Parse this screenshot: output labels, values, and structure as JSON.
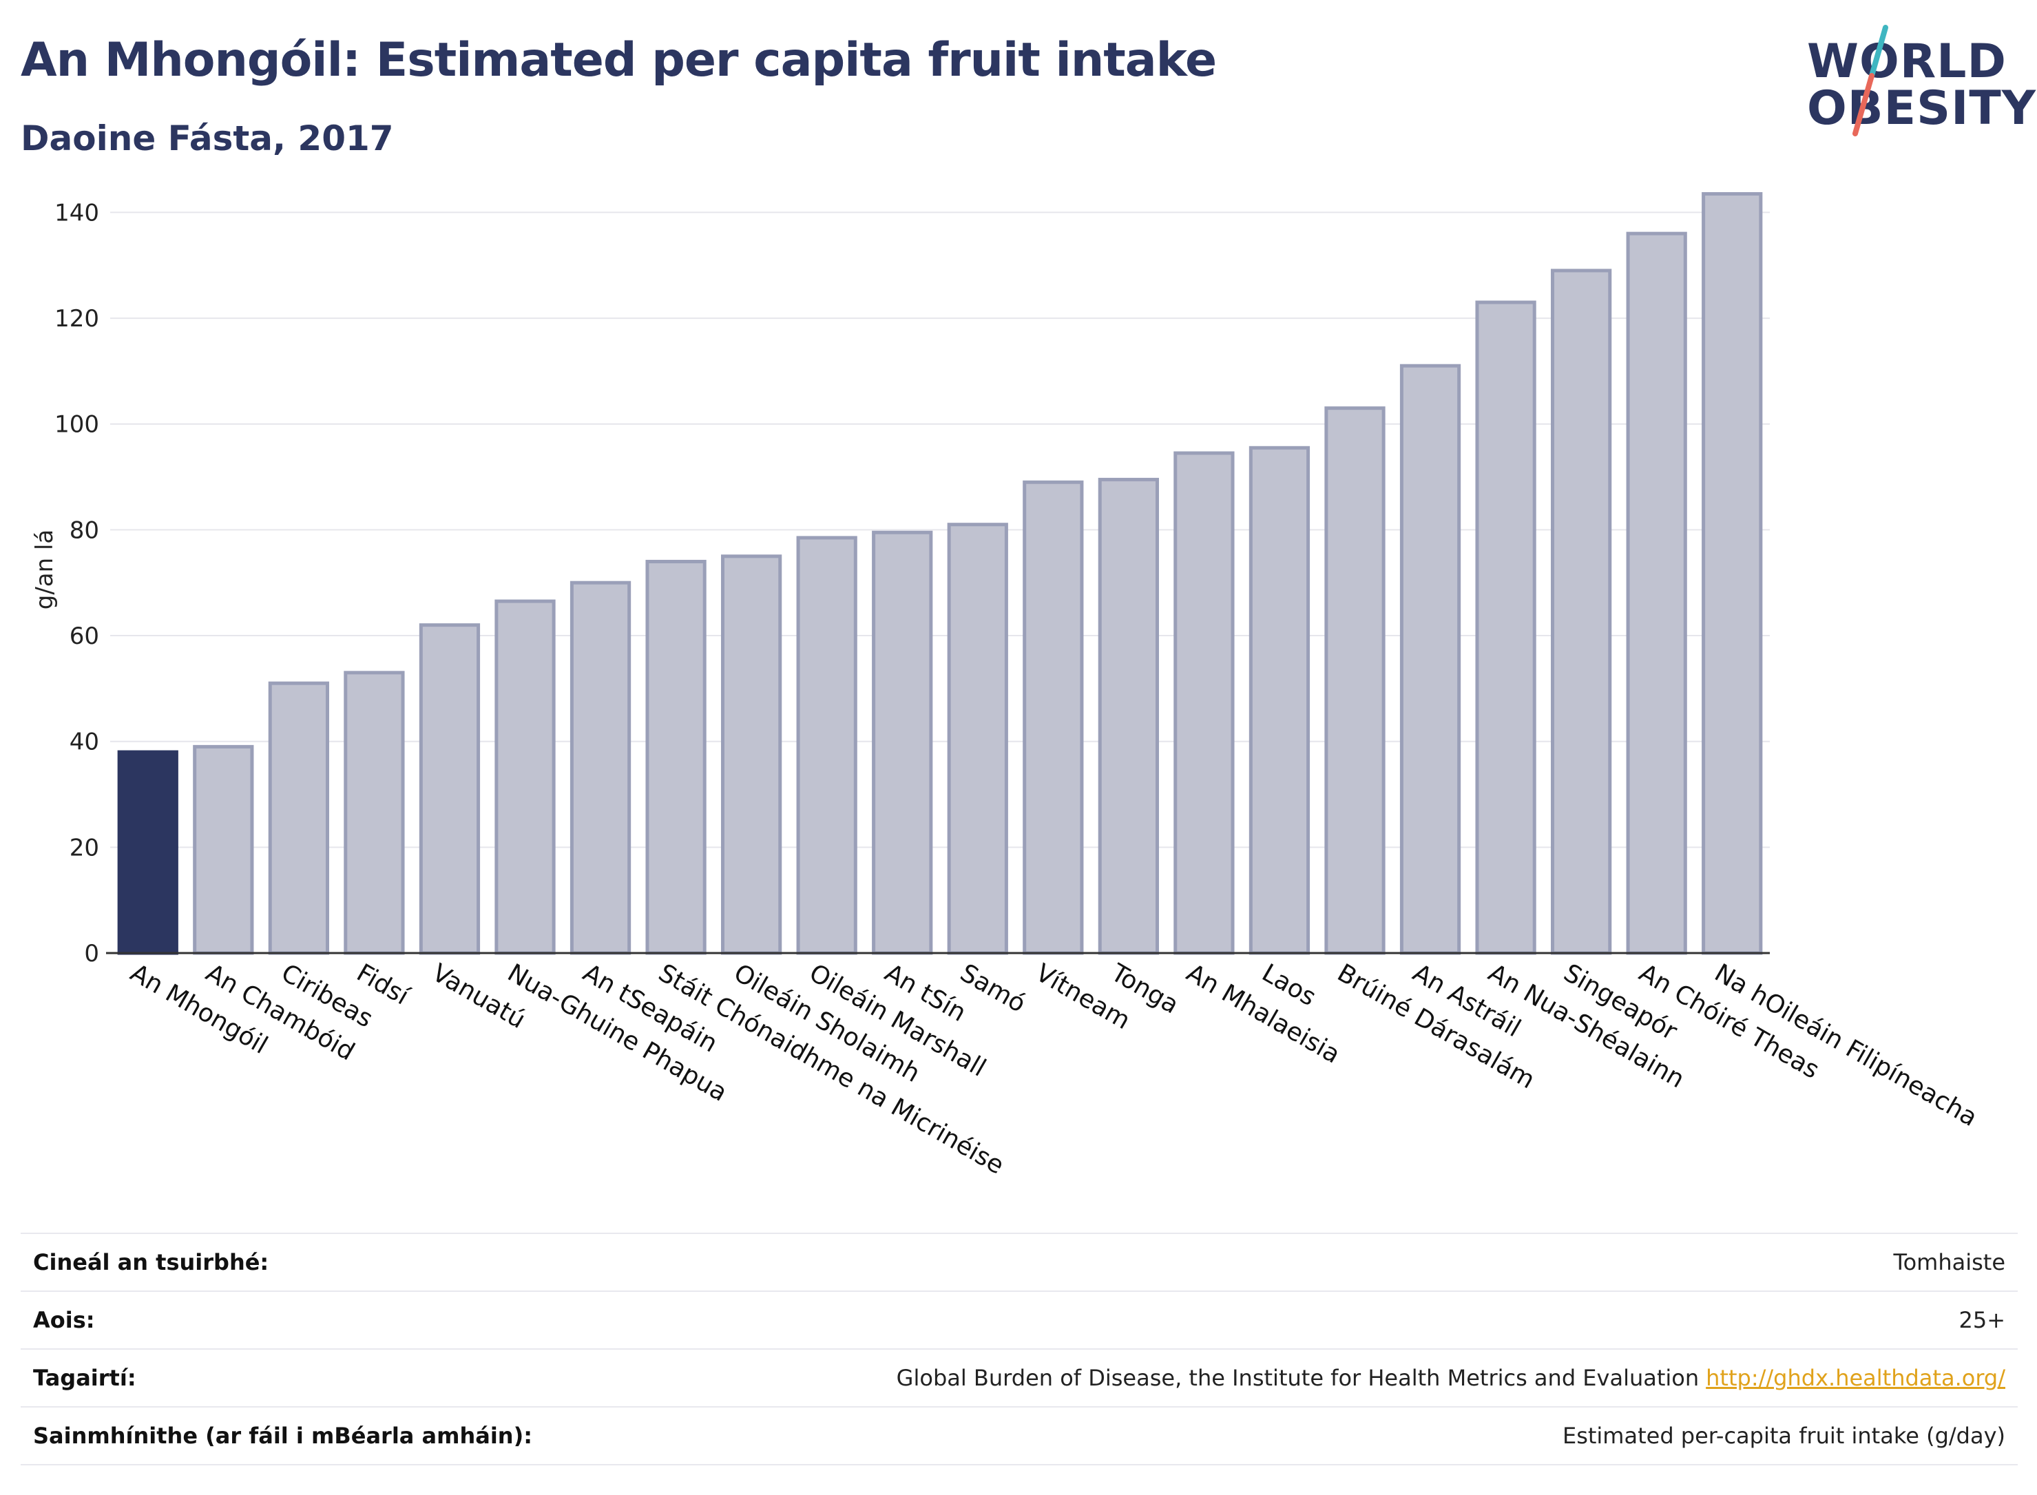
{
  "header": {
    "title": "An Mhongóil: Estimated per capita fruit intake",
    "subtitle": "Daoine Fásta, 2017"
  },
  "logo": {
    "line1": "WORLD",
    "line2": "OBESITY",
    "colors": {
      "text": "#2c3660",
      "slash_top": "#3fb6c1",
      "slash_bottom": "#e8685a"
    }
  },
  "chart_data": {
    "type": "bar",
    "ylabel": "g/an lá",
    "ylim": [
      0,
      145
    ],
    "yticks": [
      0,
      20,
      40,
      60,
      80,
      100,
      120,
      140
    ],
    "grid": true,
    "highlight": "An Mhongóil",
    "colors": {
      "highlight": "#2c3660",
      "bar": "#c0c2d0",
      "bar_stroke": "#9a9fb8"
    },
    "categories": [
      "An Mhongóil",
      "An Chambóid",
      "Ciribeas",
      "Fidsí",
      "Vanuatú",
      "Nua-Ghuine Phapua",
      "An tSeapáin",
      "Stáit Chónaidhme na Micrinéise",
      "Oileáin Sholaimh",
      "Oileáin Marshall",
      "An tSín",
      "Samó",
      "Vítneam",
      "Tonga",
      "An Mhalaeisia",
      "Laos",
      "Brúiné Dárasalám",
      "An Astráil",
      "An Nua-Shéalainn",
      "Singeapór",
      "An Chóiré Theas",
      "Na hOileáin Filipíneacha"
    ],
    "values": [
      38,
      39,
      51,
      53,
      62,
      66.5,
      70,
      74,
      75,
      78.5,
      79.5,
      81,
      89,
      89.5,
      94.5,
      95.5,
      103,
      111,
      123,
      129,
      136,
      143.5
    ]
  },
  "meta": {
    "rows": [
      {
        "key": "Cineál an tsuirbhé:",
        "value": "Tomhaiste"
      },
      {
        "key": "Aois:",
        "value": "25+"
      },
      {
        "key": "Tagairtí:",
        "value": "Global Burden of Disease, the Institute for Health Metrics and Evaluation",
        "link": "http://ghdx.healthdata.org/"
      },
      {
        "key": "Sainmhínithe (ar fáil i mBéarla amháin):",
        "value": "Estimated per-capita fruit intake (g/day)"
      }
    ]
  }
}
